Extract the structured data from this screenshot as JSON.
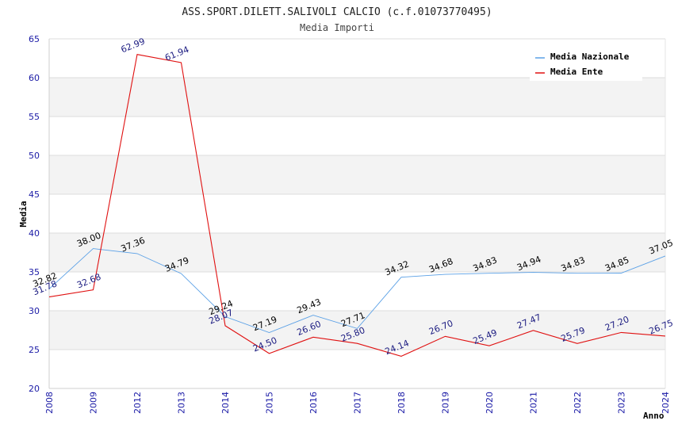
{
  "chart_data": {
    "type": "line",
    "title": "ASS.SPORT.DILETT.SALIVOLI CALCIO (c.f.01073770495)",
    "subtitle": "Media Importi",
    "xlabel": "Anno",
    "ylabel": "Media",
    "ylim": [
      20,
      65
    ],
    "yticks": [
      20,
      25,
      30,
      35,
      40,
      45,
      50,
      55,
      60,
      65
    ],
    "categories": [
      "2008",
      "2009",
      "2012",
      "2013",
      "2014",
      "2015",
      "2016",
      "2017",
      "2018",
      "2019",
      "2020",
      "2021",
      "2022",
      "2023",
      "2024"
    ],
    "series": [
      {
        "name": "Media Nazionale",
        "color": "#5aa0e6",
        "label_color": "#000000",
        "values": [
          32.82,
          38.0,
          37.36,
          34.79,
          29.24,
          27.19,
          29.43,
          27.71,
          34.32,
          34.68,
          34.83,
          34.94,
          34.83,
          34.85,
          37.05
        ],
        "labels": [
          "32.82",
          "38.00",
          "37.36",
          "34.79",
          "29.24",
          "27.19",
          "29.43",
          "27.71",
          "34.32",
          "34.68",
          "34.83",
          "34.94",
          "34.83",
          "34.85",
          "37.05"
        ]
      },
      {
        "name": "Media Ente",
        "color": "#e01010",
        "label_color": "#1a1a80",
        "values": [
          31.78,
          32.68,
          62.99,
          61.94,
          28.07,
          24.5,
          26.6,
          25.8,
          24.14,
          26.7,
          25.49,
          27.47,
          25.79,
          27.2,
          26.75
        ],
        "labels": [
          "31.78",
          "32.68",
          "62.99",
          "61.94",
          "28.07",
          "24.50",
          "26.60",
          "25.80",
          "24.14",
          "26.70",
          "25.49",
          "27.47",
          "25.79",
          "27.20",
          "26.75"
        ]
      }
    ],
    "grid": true,
    "legend_position": "top-right"
  }
}
